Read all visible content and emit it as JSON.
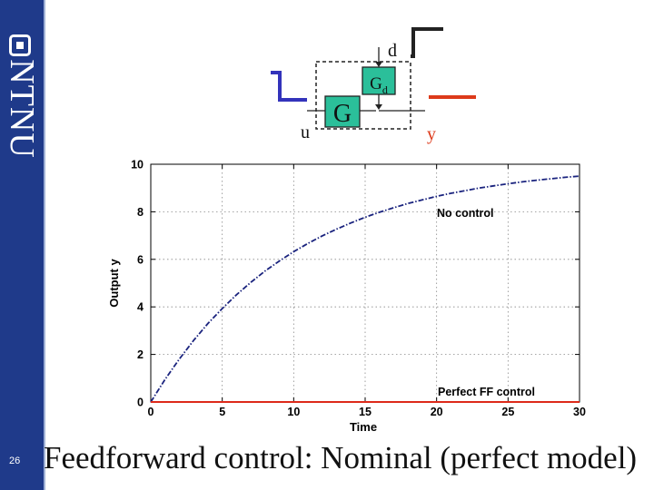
{
  "slide": {
    "number": "26",
    "title": "Feedforward control: Nominal (perfect model)",
    "brand": "NTNU",
    "brand_color": "#1f3a8a"
  },
  "diagram": {
    "input_label": "u",
    "process_label": "G",
    "disturbance_block_label": "G",
    "disturbance_block_subscript": "d",
    "disturbance_label": "d",
    "output_label": "y",
    "block_fill": "#2bbf9a",
    "input_signal_color": "#3333bb",
    "output_signal_color": "#dd3a1a",
    "disturbance_signal_color": "#222222"
  },
  "chart_data": {
    "type": "line",
    "xlabel": "Time",
    "ylabel": "Output y",
    "xlim": [
      0,
      30
    ],
    "ylim": [
      0,
      10
    ],
    "xticks": [
      0,
      5,
      10,
      15,
      20,
      25,
      30
    ],
    "yticks": [
      0,
      2,
      4,
      6,
      8,
      10
    ],
    "grid": true,
    "series": [
      {
        "name": "No control",
        "color": "#1a237e",
        "dash": "dashdot",
        "x": [
          0,
          1,
          2,
          3,
          4,
          5,
          6,
          7,
          8,
          9,
          10,
          11,
          12,
          13,
          14,
          15,
          16,
          17,
          18,
          19,
          20,
          21,
          22,
          23,
          24,
          25,
          26,
          27,
          28,
          29,
          30
        ],
        "values": [
          0,
          0.95,
          1.81,
          2.59,
          3.3,
          3.93,
          4.51,
          5.03,
          5.51,
          5.93,
          6.32,
          6.67,
          6.99,
          7.27,
          7.53,
          7.77,
          7.98,
          8.17,
          8.35,
          8.5,
          8.65,
          8.78,
          8.89,
          9.0,
          9.09,
          9.18,
          9.26,
          9.33,
          9.39,
          9.45,
          9.5
        ]
      },
      {
        "name": "Perfect FF control",
        "color": "#dd2a1a",
        "dash": "solid",
        "x": [
          0,
          30
        ],
        "values": [
          0,
          0
        ]
      }
    ]
  }
}
